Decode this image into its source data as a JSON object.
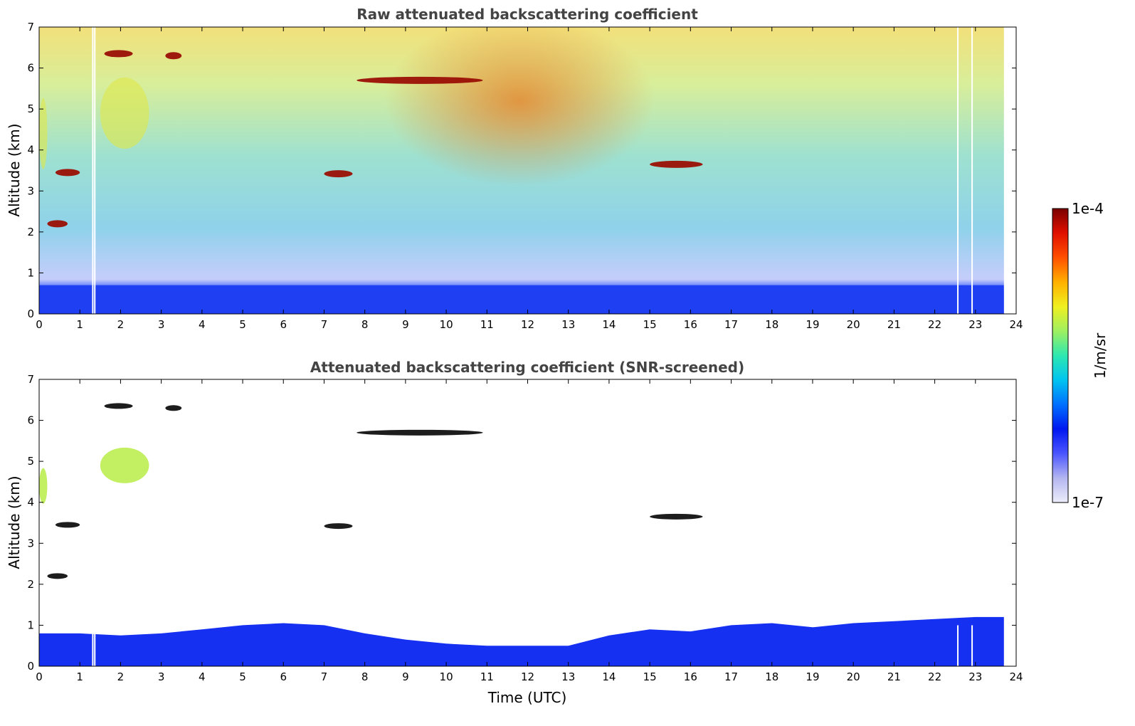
{
  "chart_data": [
    {
      "type": "heatmap",
      "title": "Raw attenuated backscattering coefficient",
      "xlabel": "",
      "ylabel": "Altitude (km)",
      "xlim": [
        0,
        24
      ],
      "ylim": [
        0,
        7
      ],
      "x_ticks": [
        "0",
        "1",
        "2",
        "3",
        "4",
        "5",
        "6",
        "7",
        "8",
        "9",
        "10",
        "11",
        "12",
        "13",
        "14",
        "15",
        "16",
        "17",
        "18",
        "19",
        "20",
        "21",
        "22",
        "23",
        "24"
      ],
      "y_ticks": [
        "0",
        "1",
        "2",
        "3",
        "4",
        "5",
        "6",
        "7"
      ],
      "data_end_hour": 23.7,
      "data_gaps_hours": [
        1.3,
        1.35,
        22.55,
        22.9
      ],
      "boundary_layer_top_km": 0.7,
      "features": [
        {
          "label": "cloud",
          "t_start": 7.8,
          "t_end": 10.9,
          "alt_km": 5.7,
          "level": "high"
        },
        {
          "label": "cloud",
          "t_start": 15.0,
          "t_end": 16.3,
          "alt_km": 3.65,
          "level": "high"
        },
        {
          "label": "cloud",
          "t_start": 0.4,
          "t_end": 1.0,
          "alt_km": 3.45,
          "level": "high"
        },
        {
          "label": "cloud",
          "t_start": 7.0,
          "t_end": 7.7,
          "alt_km": 3.42,
          "level": "high"
        },
        {
          "label": "cloud",
          "t_start": 0.2,
          "t_end": 0.7,
          "alt_km": 2.2,
          "level": "high"
        },
        {
          "label": "cloud",
          "t_start": 3.1,
          "t_end": 3.5,
          "alt_km": 6.3,
          "level": "high"
        },
        {
          "label": "cloud",
          "t_start": 1.6,
          "t_end": 2.3,
          "alt_km": 6.35,
          "level": "high"
        },
        {
          "label": "aerosol layer",
          "t_start": 1.5,
          "t_end": 2.7,
          "alt_km": 4.9,
          "level": "medium"
        },
        {
          "label": "aerosol layer",
          "t_start": 0.0,
          "t_end": 0.2,
          "alt_km": 4.4,
          "level": "medium"
        }
      ]
    },
    {
      "type": "heatmap",
      "title": "Attenuated backscattering coefficient (SNR-screened)",
      "xlabel": "Time (UTC)",
      "ylabel": "Altitude (km)",
      "xlim": [
        0,
        24
      ],
      "ylim": [
        0,
        7
      ],
      "x_ticks": [
        "0",
        "1",
        "2",
        "3",
        "4",
        "5",
        "6",
        "7",
        "8",
        "9",
        "10",
        "11",
        "12",
        "13",
        "14",
        "15",
        "16",
        "17",
        "18",
        "19",
        "20",
        "21",
        "22",
        "23",
        "24"
      ],
      "y_ticks": [
        "0",
        "1",
        "2",
        "3",
        "4",
        "5",
        "6",
        "7"
      ],
      "boundary_layer_top_km": {
        "hours": [
          0,
          1,
          2,
          3,
          4,
          5,
          6,
          7,
          8,
          9,
          10,
          11,
          12,
          13,
          14,
          15,
          16,
          17,
          18,
          19,
          20,
          21,
          22,
          23,
          23.7
        ],
        "values": [
          0.8,
          0.8,
          0.75,
          0.8,
          0.9,
          1.0,
          1.05,
          1.0,
          0.8,
          0.65,
          0.55,
          0.5,
          0.5,
          0.5,
          0.75,
          0.9,
          0.85,
          1.0,
          1.05,
          0.95,
          1.05,
          1.1,
          1.15,
          1.2,
          1.2
        ]
      }
    }
  ],
  "colorbar": {
    "label": "1/m/sr",
    "max_label": "1e-4",
    "min_label": "1e-7",
    "colors": [
      "#ecedfa",
      "#b4b6f0",
      "#4a55ff",
      "#0018f0",
      "#0070ff",
      "#00c4f0",
      "#2ee8b0",
      "#9ef060",
      "#f0f020",
      "#ffb000",
      "#ff5000",
      "#e01000",
      "#7a0000"
    ]
  }
}
